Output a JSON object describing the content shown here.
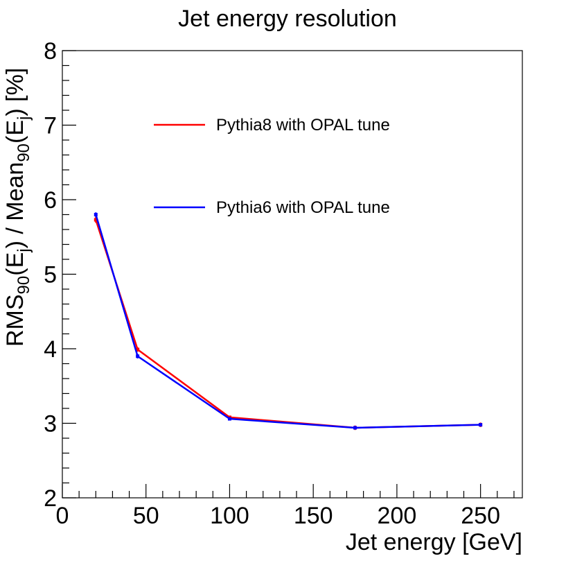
{
  "chart_data": {
    "type": "line",
    "title": "Jet energy resolution",
    "xlabel": "Jet energy [GeV]",
    "ylabel": {
      "parts": [
        "RMS",
        "90",
        "(E",
        "j",
        ") / Mean",
        "90",
        "(E",
        "j",
        ") [%]"
      ]
    },
    "xlim": [
      0,
      275
    ],
    "ylim": [
      2,
      8
    ],
    "x_ticks": [
      0,
      50,
      100,
      150,
      200,
      250
    ],
    "x_tick_labels": [
      "0",
      "50",
      "100",
      "150",
      "200",
      "250"
    ],
    "y_ticks": [
      2,
      3,
      4,
      5,
      6,
      7,
      8
    ],
    "y_tick_labels": [
      "2",
      "3",
      "4",
      "5",
      "6",
      "7",
      "8"
    ],
    "grid": false,
    "legend_placement": "upper-center",
    "series": [
      {
        "name": "Pythia8 with OPAL tune",
        "color": "#ff0000",
        "x": [
          20,
          45,
          100,
          175,
          250
        ],
        "y": [
          5.73,
          3.99,
          3.08,
          2.94,
          2.98
        ],
        "err": [
          0.04,
          0.03,
          0.02,
          0.03,
          0.03
        ]
      },
      {
        "name": "Pythia6 with OPAL tune",
        "color": "#0000ff",
        "x": [
          20,
          45,
          100,
          175,
          250
        ],
        "y": [
          5.8,
          3.9,
          3.06,
          2.94,
          2.98
        ],
        "err": [
          0.03,
          0.03,
          0.02,
          0.02,
          0.02
        ]
      }
    ]
  }
}
